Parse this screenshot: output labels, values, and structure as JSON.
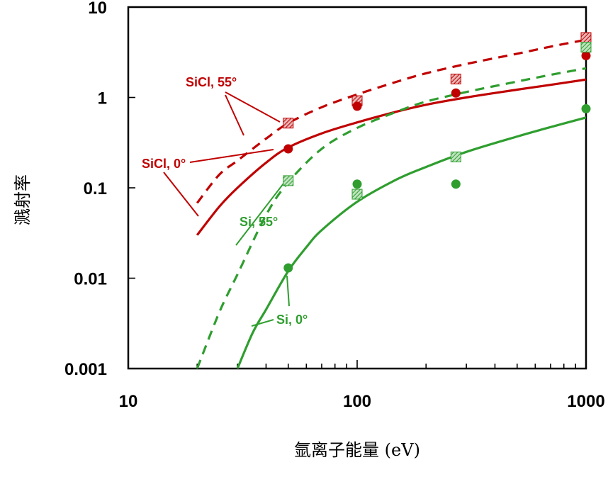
{
  "chart_data": {
    "type": "line",
    "xscale": "log",
    "yscale": "log",
    "xlim": [
      10,
      1000
    ],
    "ylim": [
      0.001,
      10
    ],
    "xticks": [
      10,
      100,
      1000
    ],
    "xtick_labels": [
      "10",
      "100",
      "1000"
    ],
    "yticks": [
      0.001,
      0.01,
      0.1,
      1,
      10
    ],
    "ytick_labels": [
      "0.001",
      "0.01",
      "0.1",
      "1",
      "10"
    ],
    "xlabel": "氩离子能量 (eV)",
    "ylabel": "溅射率",
    "grid": false,
    "colors": {
      "red": "#c00000",
      "green": "#2f9e2f"
    },
    "series": [
      {
        "name": "SiCl, 55°",
        "color": "#c00000",
        "dash": true,
        "curve_x": [
          20,
          25,
          30,
          40,
          50,
          70,
          100,
          150,
          200,
          300,
          500,
          700,
          1000
        ],
        "curve_y": [
          0.068,
          0.14,
          0.2,
          0.35,
          0.52,
          0.78,
          1.08,
          1.5,
          1.85,
          2.35,
          3.05,
          3.65,
          4.35
        ],
        "points_x": [
          50,
          100,
          270,
          1000
        ],
        "points_y": [
          0.52,
          0.92,
          1.6,
          4.6
        ],
        "marker": "square-hatched"
      },
      {
        "name": "SiCl, 0°",
        "color": "#c00000",
        "dash": false,
        "curve_x": [
          20,
          25,
          30,
          40,
          50,
          70,
          100,
          150,
          200,
          300,
          500,
          700,
          1000
        ],
        "curve_y": [
          0.03,
          0.062,
          0.1,
          0.19,
          0.28,
          0.4,
          0.53,
          0.7,
          0.83,
          1.0,
          1.22,
          1.38,
          1.58
        ],
        "points_x": [
          50,
          100,
          270,
          1000
        ],
        "points_y": [
          0.27,
          0.8,
          1.12,
          2.9
        ],
        "marker": "circle"
      },
      {
        "name": "Si, 55°",
        "color": "#2f9e2f",
        "dash": true,
        "curve_x": [
          20,
          25,
          30,
          40,
          50,
          70,
          100,
          150,
          200,
          300,
          500,
          700,
          1000
        ],
        "curve_y": [
          0.001,
          0.0042,
          0.011,
          0.05,
          0.115,
          0.27,
          0.46,
          0.7,
          0.9,
          1.15,
          1.5,
          1.78,
          2.1
        ],
        "points_x": [
          50,
          100,
          270,
          1000
        ],
        "points_y": [
          0.12,
          0.085,
          0.22,
          3.6
        ],
        "marker": "square-hatched"
      },
      {
        "name": "Si, 0°",
        "color": "#2f9e2f",
        "dash": false,
        "curve_x": [
          30,
          35,
          40,
          50,
          60,
          70,
          100,
          150,
          200,
          300,
          500,
          700,
          1000
        ],
        "curve_y": [
          0.001,
          0.0025,
          0.0045,
          0.012,
          0.022,
          0.034,
          0.07,
          0.125,
          0.17,
          0.25,
          0.37,
          0.47,
          0.6
        ],
        "points_x": [
          50,
          100,
          270,
          1000
        ],
        "points_y": [
          0.013,
          0.11,
          0.11,
          0.75
        ],
        "marker": "circle"
      }
    ],
    "annotations": [
      {
        "text": "SiCl, 55°",
        "color": "#c00000"
      },
      {
        "text": "SiCl, 0°",
        "color": "#c00000"
      },
      {
        "text": "Si, 55°",
        "color": "#2f9e2f"
      },
      {
        "text": "Si, 0°",
        "color": "#2f9e2f"
      }
    ]
  }
}
